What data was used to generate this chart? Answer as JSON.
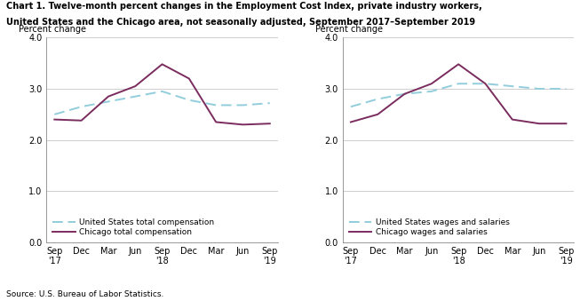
{
  "title_line1": "Chart 1. Twelve-month percent changes in the Employment Cost Index, private industry workers,",
  "title_line2": "United States and the Chicago area, not seasonally adjusted, September 2017–September 2019",
  "source": "Source: U.S. Bureau of Labor Statistics.",
  "ylabel": "Percent change",
  "xlabels": [
    "Sep\n'17",
    "Dec",
    "Mar",
    "Jun",
    "Sep\n'18",
    "Dec",
    "Mar",
    "Jun",
    "Sep\n'19"
  ],
  "ylim": [
    0.0,
    4.0
  ],
  "yticks": [
    0.0,
    1.0,
    2.0,
    3.0,
    4.0
  ],
  "left_us_data": [
    2.5,
    2.65,
    2.75,
    2.85,
    2.95,
    2.78,
    2.68,
    2.68,
    2.72
  ],
  "left_chicago_data": [
    2.4,
    2.38,
    2.85,
    3.05,
    3.48,
    3.2,
    2.35,
    2.3,
    2.32
  ],
  "right_us_data": [
    2.65,
    2.8,
    2.9,
    2.95,
    3.1,
    3.1,
    3.05,
    3.0,
    3.0
  ],
  "right_chicago_data": [
    2.35,
    2.5,
    2.9,
    3.1,
    3.48,
    3.1,
    2.4,
    2.32,
    2.32
  ],
  "us_color": "#92CDDC",
  "chicago_color": "#7B2C5E",
  "left_legend1": "United States total compensation",
  "left_legend2": "Chicago total compensation",
  "right_legend1": "United States wages and salaries",
  "right_legend2": "Chicago wages and salaries"
}
